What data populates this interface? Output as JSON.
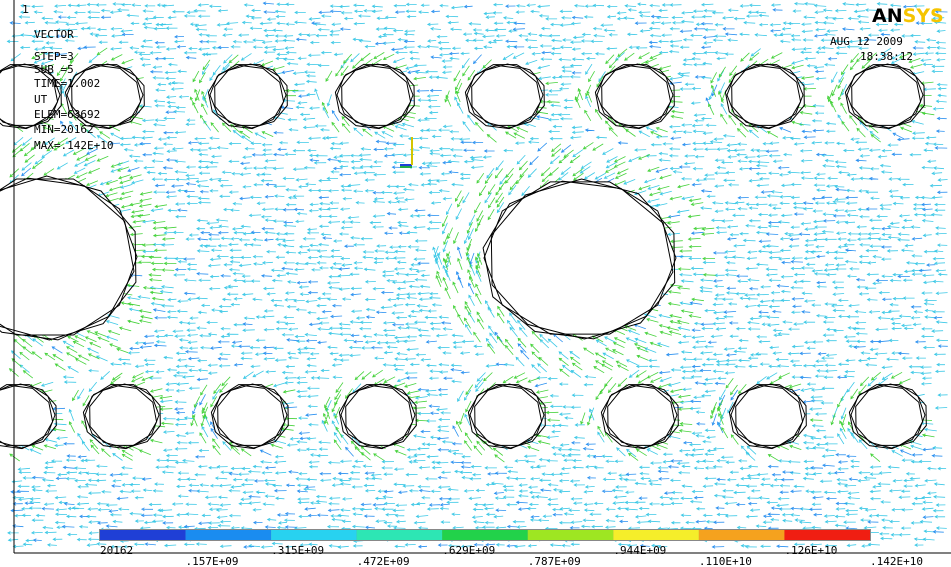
{
  "window_number": "1",
  "info": [
    "VECTOR",
    "STEP=3",
    "SUB =5",
    "TIME=1.002",
    "UT",
    "ELEM=63692",
    "MIN=20162",
    "MAX=.142E+10"
  ],
  "logo": {
    "part1": "AN",
    "part2": "SYS"
  },
  "date": "AUG 12 2009",
  "time": "18:38:12",
  "legend": {
    "colors": [
      "#1f3fd6",
      "#1a8cf0",
      "#28d2f0",
      "#2de6b4",
      "#22d24a",
      "#9ee622",
      "#f5ee2a",
      "#f5a21e",
      "#f01e12"
    ],
    "labels_top": [
      "20162",
      ".315E+09",
      ".629E+09",
      ".944E+09",
      ".126E+10"
    ],
    "labels_bottom": [
      ".157E+09",
      ".472E+09",
      ".787E+09",
      ".110E+10",
      ".142E+10"
    ]
  }
}
